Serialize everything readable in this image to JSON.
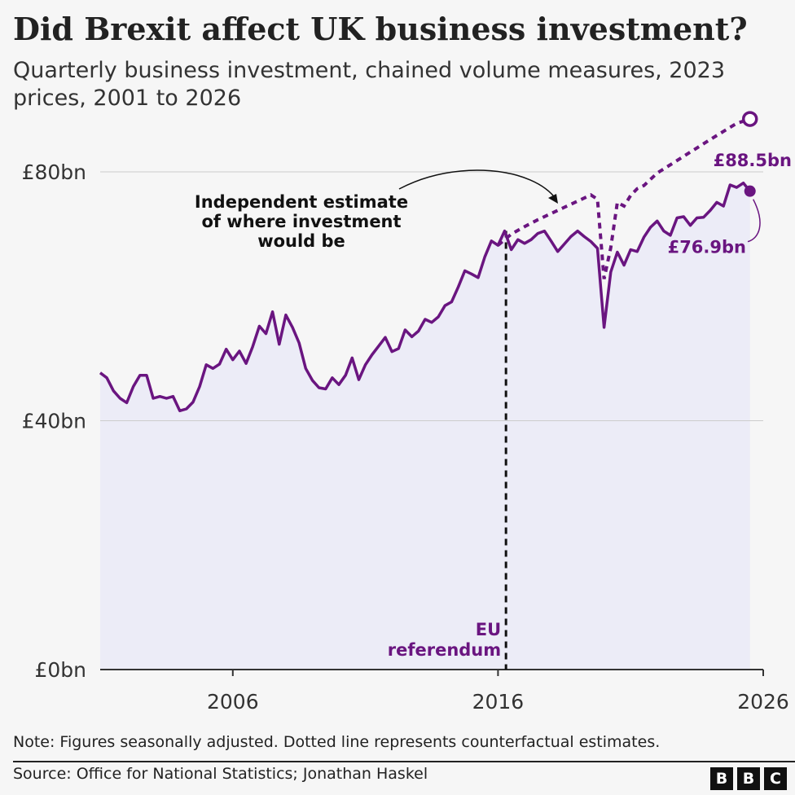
{
  "title": "Did Brexit affect UK business investment?",
  "subtitle": "Quarterly business investment, chained volume measures, 2023 prices, 2001 to 2026",
  "note": "Note: Figures seasonally adjusted. Dotted line represents counterfactual estimates.",
  "source": "Source: Office for National Statistics; Jonathan Haskel",
  "logo": [
    "B",
    "B",
    "C"
  ],
  "colors": {
    "series": "#6a1580",
    "area": "#ececf7",
    "grid": "#cccccc",
    "text": "#222222"
  },
  "chart_data": {
    "type": "line",
    "ylim": [
      0,
      80
    ],
    "xlim": [
      2001,
      2026
    ],
    "yticks": [
      0,
      40,
      80
    ],
    "ytick_labels": [
      "£0bn",
      "£40bn",
      "£80bn"
    ],
    "xticks": [
      2006,
      2016,
      2026
    ],
    "xtick_labels": [
      "2006",
      "2016",
      "2026"
    ],
    "series": [
      {
        "style": "solid",
        "x": [
          2001.0,
          2001.25,
          2001.5,
          2001.75,
          2002.0,
          2002.25,
          2002.5,
          2002.75,
          2003.0,
          2003.25,
          2003.5,
          2003.75,
          2004.0,
          2004.25,
          2004.5,
          2004.75,
          2005.0,
          2005.25,
          2005.5,
          2005.75,
          2006.0,
          2006.25,
          2006.5,
          2006.75,
          2007.0,
          2007.25,
          2007.5,
          2007.75,
          2008.0,
          2008.25,
          2008.5,
          2008.75,
          2009.0,
          2009.25,
          2009.5,
          2009.75,
          2010.0,
          2010.25,
          2010.5,
          2010.75,
          2011.0,
          2011.25,
          2011.5,
          2011.75,
          2012.0,
          2012.25,
          2012.5,
          2012.75,
          2013.0,
          2013.25,
          2013.5,
          2013.75,
          2014.0,
          2014.25,
          2014.5,
          2014.75,
          2015.0,
          2015.25,
          2015.5,
          2015.75,
          2016.0,
          2016.25,
          2016.5,
          2016.75,
          2017.0,
          2017.25,
          2017.5,
          2017.75,
          2018.0,
          2018.25,
          2018.5,
          2018.75,
          2019.0,
          2019.25,
          2019.5,
          2019.75,
          2020.0,
          2020.25,
          2020.5,
          2020.75,
          2021.0,
          2021.25,
          2021.5,
          2021.75,
          2022.0,
          2022.25,
          2022.5,
          2022.75,
          2023.0,
          2023.25,
          2023.5,
          2023.75,
          2024.0,
          2024.25,
          2024.5,
          2024.75,
          2025.0,
          2025.25,
          2025.5
        ],
        "y": [
          47.7,
          46.9,
          44.8,
          43.6,
          42.9,
          45.5,
          47.3,
          47.3,
          43.6,
          43.9,
          43.6,
          43.9,
          41.6,
          41.9,
          43.0,
          45.5,
          49.0,
          48.4,
          49.1,
          51.5,
          49.8,
          51.2,
          49.2,
          51.9,
          55.2,
          54.0,
          57.5,
          52.3,
          57.0,
          55.0,
          52.5,
          48.4,
          46.5,
          45.3,
          45.1,
          46.9,
          45.8,
          47.3,
          50.1,
          46.6,
          49.0,
          50.6,
          52.0,
          53.4,
          51.1,
          51.6,
          54.6,
          53.5,
          54.4,
          56.3,
          55.8,
          56.7,
          58.5,
          59.1,
          61.5,
          64.1,
          63.6,
          63.0,
          66.3,
          68.9,
          68.2,
          70.5,
          67.5,
          69.1,
          68.5,
          69.1,
          70.1,
          70.5,
          68.9,
          67.2,
          68.4,
          69.6,
          70.5,
          69.6,
          68.8,
          67.7,
          55.0,
          63.9,
          67.1,
          65.0,
          67.5,
          67.2,
          69.5,
          71.1,
          72.1,
          70.5,
          69.8,
          72.6,
          72.8,
          71.4,
          72.6,
          72.7,
          73.8,
          75.1,
          74.5,
          77.9,
          77.5,
          78.2,
          76.9
        ]
      },
      {
        "style": "dotted",
        "x": [
          2016.0,
          2016.5,
          2017.0,
          2017.5,
          2018.0,
          2018.5,
          2019.0,
          2019.5,
          2019.75,
          2020.0,
          2020.25,
          2020.5,
          2020.75,
          2021.0,
          2021.25,
          2021.5,
          2022.0,
          2023.0,
          2024.0,
          2025.0,
          2025.5
        ],
        "y": [
          68.2,
          70.0,
          71.2,
          72.3,
          73.3,
          74.3,
          75.3,
          76.3,
          75.6,
          62.8,
          67.8,
          75.1,
          74.5,
          76.2,
          77.3,
          77.8,
          79.8,
          82.5,
          85.2,
          87.8,
          88.5
        ]
      }
    ],
    "annotations": {
      "callout": "Independent estimate\nof where investment\nwould be",
      "referendum": "EU\nreferendum",
      "referendum_x": 2016.3,
      "end_counterfactual": "£88.5bn",
      "end_actual": "£76.9bn"
    },
    "grid": true
  }
}
